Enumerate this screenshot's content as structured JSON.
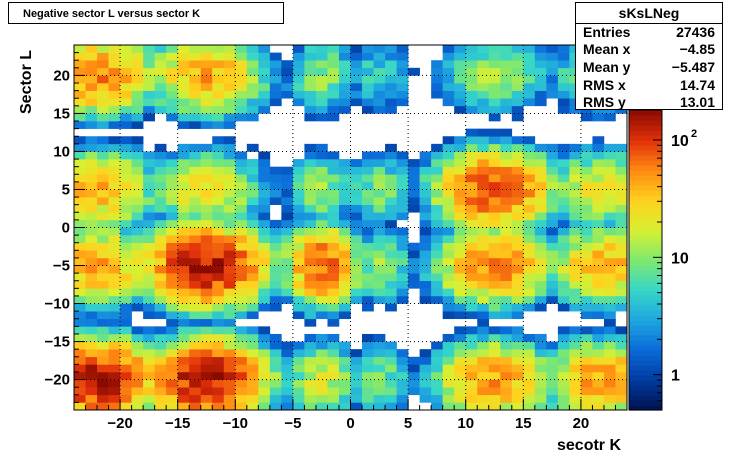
{
  "header": {
    "title": "Negative sector L versus sector K"
  },
  "stats": {
    "name": "sKsLNeg",
    "rows": [
      {
        "label": "Entries",
        "value": "27436"
      },
      {
        "label": "Mean x",
        "value": "−4.85"
      },
      {
        "label": "Mean y",
        "value": "−5.487"
      },
      {
        "label": "RMS x",
        "value": "14.74"
      },
      {
        "label": "RMS y",
        "value": "13.01"
      }
    ]
  },
  "chart_data": {
    "type": "heatmap",
    "title": "Negative sector L versus sector K",
    "xlabel": "secotr K",
    "ylabel": "Sector L",
    "xlim": [
      -24,
      24
    ],
    "ylim": [
      -24,
      24
    ],
    "bin_width": 1,
    "grid": true,
    "log_z": true,
    "zlim": [
      0.5,
      180
    ],
    "xticks": [
      -20,
      -15,
      -10,
      -5,
      0,
      5,
      10,
      15,
      20
    ],
    "yticks": [
      -20,
      -15,
      -10,
      -5,
      0,
      5,
      10,
      15,
      20
    ],
    "xtick_labels": [
      "−20",
      "−15",
      "−10",
      "−5",
      "0",
      "5",
      "10",
      "15",
      "20"
    ],
    "ytick_labels": [
      "−20",
      "−15",
      "−10",
      "−5",
      "0",
      "5",
      "10",
      "15",
      "20"
    ],
    "colorbar": {
      "ticks": [
        1,
        10,
        100
      ],
      "tick_labels": [
        "1",
        "10",
        "10^2"
      ],
      "palette": [
        "#00104e",
        "#003a9e",
        "#0a6ad8",
        "#1ea6e0",
        "#36d6c8",
        "#7ee870",
        "#d8f032",
        "#ffd21e",
        "#ff8a12",
        "#e2300a",
        "#8a0a00"
      ]
    },
    "clusters_x": [
      -22,
      -12.5,
      -2.5,
      2.5,
      12.5,
      22
    ],
    "clusters_y": [
      20,
      5,
      -5,
      -20
    ],
    "cluster_peak_counts": [
      [
        60,
        45,
        12,
        6,
        12,
        12
      ],
      [
        40,
        25,
        12,
        10,
        90,
        25
      ],
      [
        45,
        150,
        80,
        12,
        60,
        40
      ],
      [
        140,
        150,
        20,
        10,
        50,
        50
      ]
    ]
  }
}
